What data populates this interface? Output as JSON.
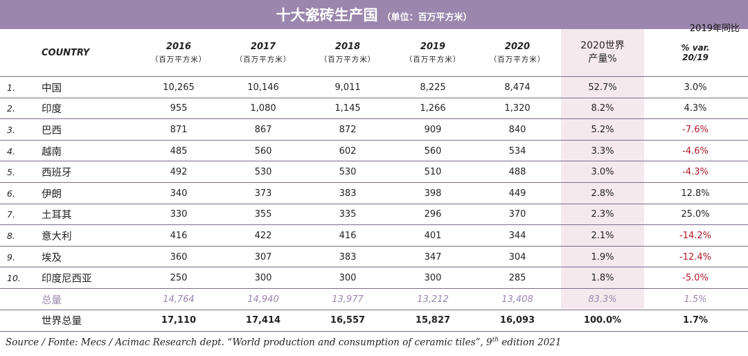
{
  "title": "十大瓷砖生产国",
  "title_unit": "（单位：百万平方米）",
  "yoy_note": "2019年同比",
  "header": {
    "country": "COUNTRY",
    "unit": "（百万平方米）",
    "years": [
      "2016",
      "2017",
      "2018",
      "2019",
      "2020"
    ],
    "share_line1": "2020世界",
    "share_line2": "产量%",
    "var_line1": "% var.",
    "var_line2": "20/19"
  },
  "rows": [
    {
      "rank": "1.",
      "country": "中国",
      "v2016": "10,265",
      "v2017": "10,146",
      "v2018": "9,011",
      "v2019": "8,225",
      "v2020": "8,474",
      "share": "52.7%",
      "var": "3.0%"
    },
    {
      "rank": "2.",
      "country": "印度",
      "v2016": "955",
      "v2017": "1,080",
      "v2018": "1,145",
      "v2019": "1,266",
      "v2020": "1,320",
      "share": "8.2%",
      "var": "4.3%"
    },
    {
      "rank": "3.",
      "country": "巴西",
      "v2016": "871",
      "v2017": "867",
      "v2018": "872",
      "v2019": "909",
      "v2020": "840",
      "share": "5.2%",
      "var": "-7.6%"
    },
    {
      "rank": "4.",
      "country": "越南",
      "v2016": "485",
      "v2017": "560",
      "v2018": "602",
      "v2019": "560",
      "v2020": "534",
      "share": "3.3%",
      "var": "-4.6%"
    },
    {
      "rank": "5.",
      "country": "西班牙",
      "v2016": "492",
      "v2017": "530",
      "v2018": "530",
      "v2019": "510",
      "v2020": "488",
      "share": "3.0%",
      "var": "-4.3%"
    },
    {
      "rank": "6.",
      "country": "伊朗",
      "v2016": "340",
      "v2017": "373",
      "v2018": "383",
      "v2019": "398",
      "v2020": "449",
      "share": "2.8%",
      "var": "12.8%"
    },
    {
      "rank": "7.",
      "country": "土耳其",
      "v2016": "330",
      "v2017": "355",
      "v2018": "335",
      "v2019": "296",
      "v2020": "370",
      "share": "2.3%",
      "var": "25.0%"
    },
    {
      "rank": "8.",
      "country": "意大利",
      "v2016": "416",
      "v2017": "422",
      "v2018": "416",
      "v2019": "401",
      "v2020": "344",
      "share": "2.1%",
      "var": "-14.2%"
    },
    {
      "rank": "9.",
      "country": "埃及",
      "v2016": "360",
      "v2017": "307",
      "v2018": "383",
      "v2019": "347",
      "v2020": "304",
      "share": "1.9%",
      "var": "-12.4%"
    },
    {
      "rank": "10.",
      "country": "印度尼西亚",
      "v2016": "250",
      "v2017": "300",
      "v2018": "300",
      "v2019": "300",
      "v2020": "285",
      "share": "1.8%",
      "var": "-5.0%"
    }
  ],
  "subtotal": {
    "label": "总量",
    "v2016": "14,764",
    "v2017": "14,940",
    "v2018": "13,977",
    "v2019": "13,212",
    "v2020": "13,408",
    "share": "83.3%",
    "var": "1.5%"
  },
  "total": {
    "label": "世界总量",
    "v2016": "17,110",
    "v2017": "17,414",
    "v2018": "16,557",
    "v2019": "15,827",
    "v2020": "16,093",
    "share": "100.0%",
    "var": "1.7%"
  },
  "source_main": "Source / Fonte: Mecs / Acimac Research dept. “World production and consumption of ceramic tiles”, 9",
  "source_sup": "th",
  "source_end": " edition 2021",
  "colors": {
    "accent": "#9b86ad",
    "negative": "#b0182a",
    "highlight_column": "#f5e9ee"
  }
}
